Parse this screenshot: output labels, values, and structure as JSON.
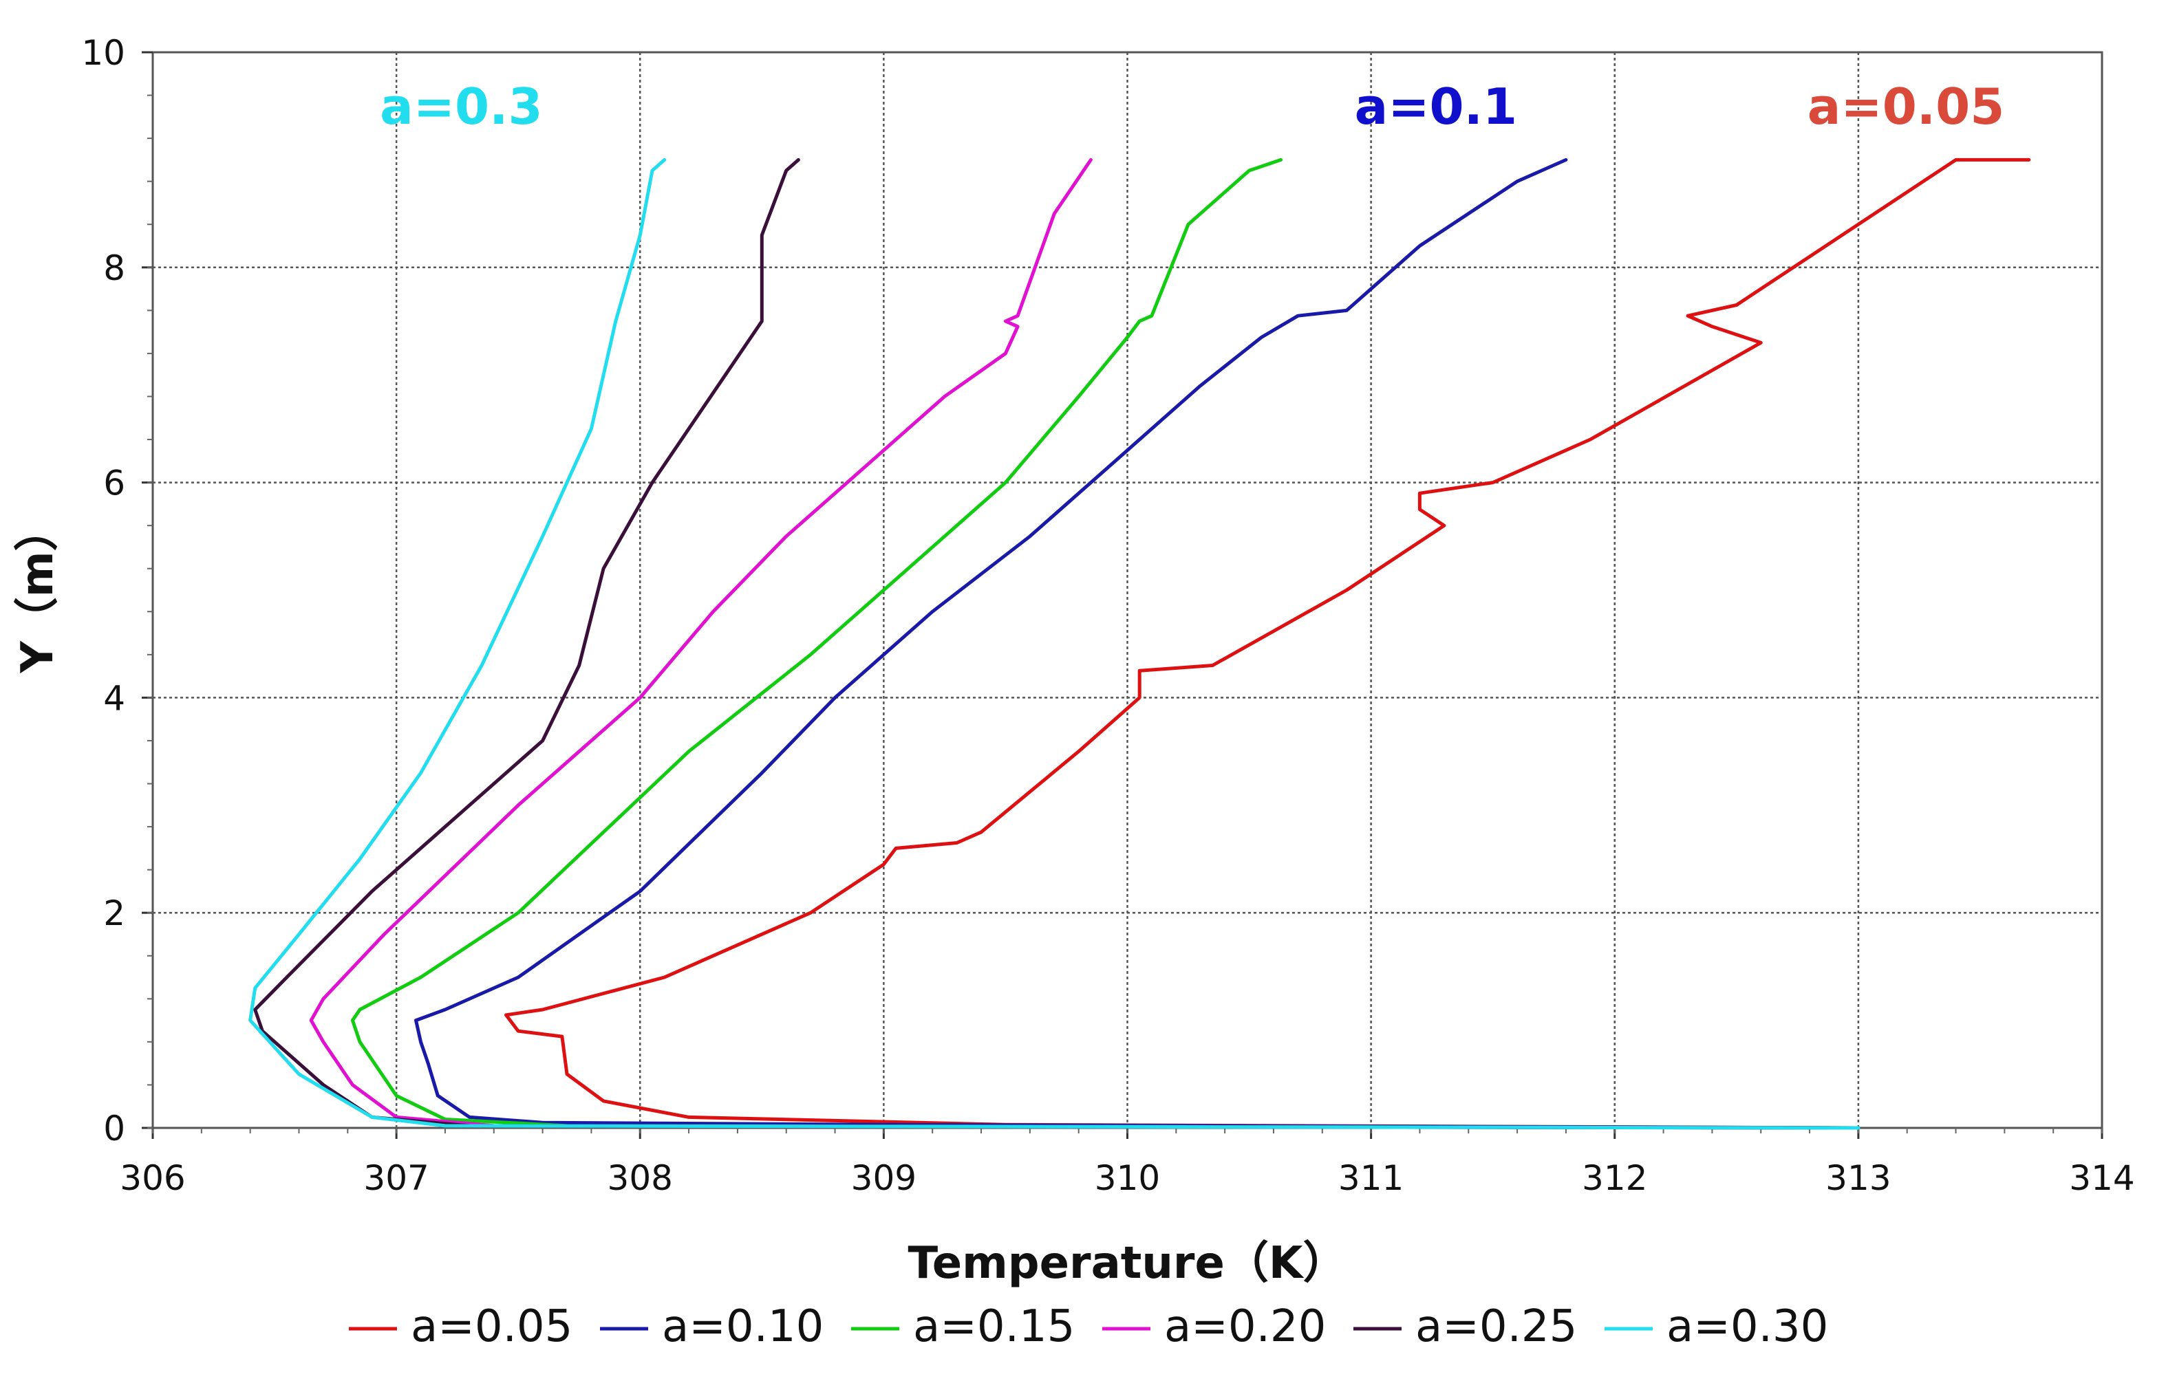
{
  "chart_data": {
    "type": "line",
    "title": "",
    "xlabel": "Temperature（K）",
    "ylabel": "Y（m）",
    "xlim": [
      306,
      314
    ],
    "ylim": [
      0,
      10
    ],
    "xticks": [
      "306",
      "307",
      "308",
      "309",
      "310",
      "311",
      "312",
      "313",
      "314"
    ],
    "yticks": [
      "0",
      "2",
      "4",
      "6",
      "8",
      "10"
    ],
    "grid": true,
    "legend_position": "bottom",
    "annotations": [
      {
        "text": "a=0.3",
        "color": "#22DDEE",
        "x": 307.6,
        "y": 9.5
      },
      {
        "text": "a=0.1",
        "color": "#1010CC",
        "x": 311.6,
        "y": 9.5
      },
      {
        "text": "a=0.05",
        "color": "#D94A3A",
        "x": 313.6,
        "y": 9.5
      }
    ],
    "series": [
      {
        "name": "a=0.05",
        "color": "#DD1111",
        "points": [
          [
            313.0,
            0.0
          ],
          [
            309.5,
            0.03
          ],
          [
            308.2,
            0.1
          ],
          [
            307.85,
            0.25
          ],
          [
            307.7,
            0.5
          ],
          [
            307.68,
            0.85
          ],
          [
            307.5,
            0.9
          ],
          [
            307.45,
            1.05
          ],
          [
            307.6,
            1.1
          ],
          [
            308.1,
            1.4
          ],
          [
            308.7,
            2.0
          ],
          [
            309.0,
            2.45
          ],
          [
            309.05,
            2.6
          ],
          [
            309.3,
            2.65
          ],
          [
            309.4,
            2.75
          ],
          [
            309.8,
            3.5
          ],
          [
            310.05,
            4.0
          ],
          [
            310.05,
            4.25
          ],
          [
            310.35,
            4.3
          ],
          [
            310.9,
            5.0
          ],
          [
            311.3,
            5.6
          ],
          [
            311.2,
            5.75
          ],
          [
            311.2,
            5.9
          ],
          [
            311.5,
            6.0
          ],
          [
            311.9,
            6.4
          ],
          [
            312.6,
            7.3
          ],
          [
            312.4,
            7.45
          ],
          [
            312.3,
            7.55
          ],
          [
            312.5,
            7.65
          ],
          [
            313.4,
            9.0
          ],
          [
            313.7,
            9.0
          ]
        ]
      },
      {
        "name": "a=0.10",
        "color": "#1A1AA8",
        "points": [
          [
            313.0,
            0.0
          ],
          [
            309.0,
            0.03
          ],
          [
            307.6,
            0.05
          ],
          [
            307.3,
            0.1
          ],
          [
            307.17,
            0.3
          ],
          [
            307.13,
            0.6
          ],
          [
            307.1,
            0.8
          ],
          [
            307.08,
            1.0
          ],
          [
            307.2,
            1.1
          ],
          [
            307.5,
            1.4
          ],
          [
            308.0,
            2.2
          ],
          [
            308.5,
            3.3
          ],
          [
            308.8,
            4.0
          ],
          [
            309.2,
            4.8
          ],
          [
            309.6,
            5.5
          ],
          [
            310.0,
            6.3
          ],
          [
            310.3,
            6.9
          ],
          [
            310.55,
            7.35
          ],
          [
            310.7,
            7.55
          ],
          [
            310.9,
            7.6
          ],
          [
            311.2,
            8.2
          ],
          [
            311.6,
            8.8
          ],
          [
            311.8,
            9.0
          ]
        ]
      },
      {
        "name": "a=0.15",
        "color": "#11CC11",
        "points": [
          [
            313.0,
            0.0
          ],
          [
            307.7,
            0.02
          ],
          [
            307.2,
            0.08
          ],
          [
            307.0,
            0.3
          ],
          [
            306.85,
            0.8
          ],
          [
            306.82,
            1.0
          ],
          [
            306.85,
            1.1
          ],
          [
            307.1,
            1.4
          ],
          [
            307.5,
            2.0
          ],
          [
            308.2,
            3.5
          ],
          [
            308.7,
            4.4
          ],
          [
            309.1,
            5.2
          ],
          [
            309.5,
            6.0
          ],
          [
            309.8,
            6.8
          ],
          [
            310.0,
            7.35
          ],
          [
            310.05,
            7.5
          ],
          [
            310.1,
            7.55
          ],
          [
            310.25,
            8.4
          ],
          [
            310.5,
            8.9
          ],
          [
            310.63,
            9.0
          ]
        ]
      },
      {
        "name": "a=0.20",
        "color": "#E011D0",
        "points": [
          [
            313.0,
            0.0
          ],
          [
            307.4,
            0.02
          ],
          [
            307.0,
            0.1
          ],
          [
            306.82,
            0.4
          ],
          [
            306.7,
            0.8
          ],
          [
            306.65,
            1.0
          ],
          [
            306.7,
            1.2
          ],
          [
            306.95,
            1.8
          ],
          [
            307.5,
            3.0
          ],
          [
            308.0,
            4.0
          ],
          [
            308.3,
            4.8
          ],
          [
            308.6,
            5.5
          ],
          [
            308.85,
            6.0
          ],
          [
            309.25,
            6.8
          ],
          [
            309.5,
            7.2
          ],
          [
            309.55,
            7.45
          ],
          [
            309.5,
            7.5
          ],
          [
            309.55,
            7.55
          ],
          [
            309.7,
            8.5
          ],
          [
            309.85,
            9.0
          ]
        ]
      },
      {
        "name": "a=0.25",
        "color": "#3A0F3A",
        "points": [
          [
            313.0,
            0.0
          ],
          [
            307.3,
            0.02
          ],
          [
            306.9,
            0.1
          ],
          [
            306.7,
            0.4
          ],
          [
            306.45,
            0.9
          ],
          [
            306.42,
            1.1
          ],
          [
            306.55,
            1.4
          ],
          [
            306.9,
            2.2
          ],
          [
            307.3,
            3.0
          ],
          [
            307.6,
            3.6
          ],
          [
            307.75,
            4.3
          ],
          [
            307.85,
            5.2
          ],
          [
            308.05,
            6.0
          ],
          [
            308.35,
            7.0
          ],
          [
            308.5,
            7.5
          ],
          [
            308.5,
            8.3
          ],
          [
            308.6,
            8.9
          ],
          [
            308.65,
            9.0
          ]
        ]
      },
      {
        "name": "a=0.30",
        "color": "#22DDEE",
        "points": [
          [
            313.0,
            0.0
          ],
          [
            307.2,
            0.02
          ],
          [
            306.9,
            0.1
          ],
          [
            306.6,
            0.5
          ],
          [
            306.4,
            1.0
          ],
          [
            306.42,
            1.3
          ],
          [
            306.6,
            1.8
          ],
          [
            306.85,
            2.5
          ],
          [
            307.1,
            3.3
          ],
          [
            307.35,
            4.3
          ],
          [
            307.6,
            5.5
          ],
          [
            307.8,
            6.5
          ],
          [
            307.9,
            7.5
          ],
          [
            308.0,
            8.3
          ],
          [
            308.05,
            8.9
          ],
          [
            308.1,
            9.0
          ]
        ]
      }
    ]
  }
}
